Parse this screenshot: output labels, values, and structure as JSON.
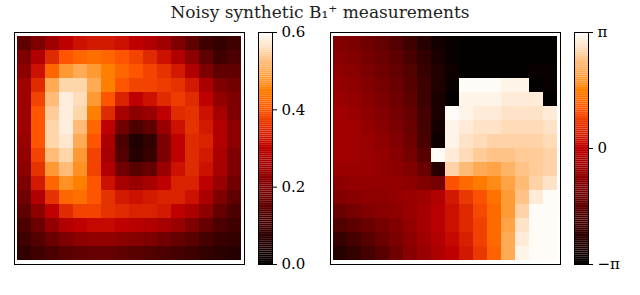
{
  "chart_data": [
    {
      "type": "heatmap",
      "title": "Noisy synthetic B₁⁺ measurements",
      "tick_labels": false,
      "cells": [
        [
          0.15,
          0.2,
          0.25,
          0.3,
          0.32,
          0.33,
          0.33,
          0.32,
          0.3,
          0.28,
          0.25,
          0.2,
          0.15,
          0.1,
          0.08,
          0.1
        ],
        [
          0.2,
          0.28,
          0.35,
          0.4,
          0.42,
          0.43,
          0.42,
          0.4,
          0.38,
          0.35,
          0.32,
          0.28,
          0.22,
          0.15,
          0.1,
          0.12
        ],
        [
          0.22,
          0.32,
          0.42,
          0.48,
          0.5,
          0.48,
          0.45,
          0.42,
          0.4,
          0.38,
          0.36,
          0.33,
          0.28,
          0.2,
          0.15,
          0.15
        ],
        [
          0.25,
          0.35,
          0.5,
          0.55,
          0.55,
          0.5,
          0.45,
          0.4,
          0.38,
          0.38,
          0.37,
          0.36,
          0.33,
          0.27,
          0.2,
          0.18
        ],
        [
          0.25,
          0.38,
          0.52,
          0.58,
          0.56,
          0.48,
          0.4,
          0.34,
          0.3,
          0.32,
          0.35,
          0.37,
          0.35,
          0.3,
          0.23,
          0.2
        ],
        [
          0.25,
          0.4,
          0.54,
          0.58,
          0.55,
          0.45,
          0.35,
          0.26,
          0.22,
          0.24,
          0.3,
          0.35,
          0.36,
          0.32,
          0.26,
          0.2
        ],
        [
          0.25,
          0.4,
          0.55,
          0.58,
          0.52,
          0.42,
          0.3,
          0.18,
          0.12,
          0.15,
          0.24,
          0.32,
          0.36,
          0.33,
          0.28,
          0.22
        ],
        [
          0.24,
          0.4,
          0.55,
          0.57,
          0.5,
          0.4,
          0.27,
          0.12,
          0.05,
          0.08,
          0.2,
          0.3,
          0.35,
          0.34,
          0.28,
          0.22
        ],
        [
          0.23,
          0.38,
          0.52,
          0.55,
          0.48,
          0.38,
          0.26,
          0.13,
          0.06,
          0.09,
          0.2,
          0.3,
          0.35,
          0.33,
          0.27,
          0.2
        ],
        [
          0.22,
          0.36,
          0.48,
          0.52,
          0.47,
          0.38,
          0.28,
          0.18,
          0.14,
          0.16,
          0.24,
          0.32,
          0.35,
          0.32,
          0.26,
          0.2
        ],
        [
          0.2,
          0.33,
          0.42,
          0.47,
          0.45,
          0.4,
          0.32,
          0.26,
          0.24,
          0.26,
          0.3,
          0.34,
          0.34,
          0.3,
          0.24,
          0.18
        ],
        [
          0.18,
          0.28,
          0.36,
          0.42,
          0.43,
          0.4,
          0.36,
          0.33,
          0.32,
          0.33,
          0.34,
          0.34,
          0.32,
          0.27,
          0.2,
          0.15
        ],
        [
          0.15,
          0.22,
          0.3,
          0.35,
          0.38,
          0.38,
          0.36,
          0.35,
          0.34,
          0.34,
          0.33,
          0.3,
          0.27,
          0.22,
          0.16,
          0.12
        ],
        [
          0.12,
          0.17,
          0.23,
          0.28,
          0.3,
          0.31,
          0.31,
          0.3,
          0.29,
          0.28,
          0.26,
          0.24,
          0.2,
          0.16,
          0.12,
          0.1
        ],
        [
          0.1,
          0.13,
          0.17,
          0.2,
          0.22,
          0.23,
          0.23,
          0.22,
          0.21,
          0.2,
          0.18,
          0.16,
          0.14,
          0.11,
          0.09,
          0.08
        ],
        [
          0.08,
          0.1,
          0.12,
          0.14,
          0.15,
          0.16,
          0.16,
          0.15,
          0.14,
          0.13,
          0.12,
          0.11,
          0.1,
          0.08,
          0.07,
          0.06
        ]
      ],
      "colorbar_range": [
        0,
        0.6
      ],
      "colorbar_ticks": [
        {
          "value": 0,
          "label": "0.0"
        },
        0.2,
        0.4,
        0.6
      ]
    },
    {
      "type": "heatmap",
      "tick_labels": false,
      "cells": [
        [
          -1.0,
          -1.1,
          -1.3,
          -1.5,
          -1.8,
          -2.1,
          -2.5,
          -2.8,
          -3.0,
          -3.1,
          -3.1,
          -3.1,
          -3.1,
          -3.1,
          -3.1,
          -3.1
        ],
        [
          -0.9,
          -1.0,
          -1.2,
          -1.4,
          -1.6,
          -1.9,
          -2.3,
          -2.7,
          -3.0,
          -3.1,
          -3.1,
          -3.1,
          -3.1,
          -3.1,
          -3.1,
          -3.1
        ],
        [
          -0.8,
          -0.9,
          -1.1,
          -1.3,
          -1.5,
          -1.8,
          -2.2,
          -2.6,
          -2.9,
          -3.1,
          -3.1,
          -3.1,
          -3.1,
          -3.1,
          -3.0,
          -3.0
        ],
        [
          -0.7,
          -0.8,
          -1.0,
          -1.2,
          -1.4,
          -1.7,
          -2.1,
          -2.6,
          -3.0,
          3.1,
          3.1,
          3.1,
          3.0,
          3.0,
          -3.1,
          -3.0
        ],
        [
          -0.6,
          -0.7,
          -0.9,
          -1.1,
          -1.3,
          -1.6,
          -2.1,
          -2.7,
          -3.1,
          3.0,
          3.0,
          3.0,
          2.9,
          2.9,
          2.9,
          -3.1
        ],
        [
          -0.5,
          -0.6,
          -0.8,
          -1.0,
          -1.2,
          -1.5,
          -2.0,
          -2.7,
          3.1,
          3.0,
          2.9,
          2.9,
          2.8,
          2.8,
          2.8,
          2.9
        ],
        [
          -0.5,
          -0.5,
          -0.7,
          -0.9,
          -1.1,
          -1.4,
          -2.0,
          -2.8,
          3.0,
          2.9,
          2.8,
          2.8,
          2.7,
          2.7,
          2.7,
          2.8
        ],
        [
          -0.5,
          -0.5,
          -0.6,
          -0.8,
          -1.0,
          -1.3,
          -1.9,
          -2.9,
          3.0,
          2.8,
          2.7,
          2.6,
          2.6,
          2.6,
          2.6,
          2.7
        ],
        [
          -0.5,
          -0.5,
          -0.6,
          -0.7,
          -0.9,
          -1.2,
          -1.7,
          3.1,
          2.9,
          2.7,
          2.5,
          2.4,
          2.4,
          2.5,
          2.5,
          2.6
        ],
        [
          -0.6,
          -0.6,
          -0.6,
          -0.7,
          -0.8,
          -1.0,
          -1.4,
          -2.5,
          2.6,
          2.3,
          2.1,
          2.0,
          2.2,
          2.4,
          2.5,
          2.6
        ],
        [
          -0.8,
          -0.7,
          -0.7,
          -0.7,
          -0.7,
          -0.8,
          -1.0,
          -1.2,
          1.0,
          1.3,
          1.5,
          1.7,
          2.0,
          2.3,
          2.6,
          2.8
        ],
        [
          -1.0,
          -0.9,
          -0.8,
          -0.8,
          -0.7,
          -0.6,
          -0.5,
          -0.2,
          0.3,
          0.7,
          1.0,
          1.4,
          1.9,
          2.4,
          2.9,
          3.1
        ],
        [
          -1.4,
          -1.2,
          -1.0,
          -0.9,
          -0.8,
          -0.6,
          -0.4,
          -0.1,
          0.2,
          0.5,
          0.9,
          1.3,
          1.9,
          2.6,
          3.1,
          3.1
        ],
        [
          -1.8,
          -1.6,
          -1.4,
          -1.2,
          -1.0,
          -0.7,
          -0.4,
          -0.1,
          0.2,
          0.5,
          0.8,
          1.3,
          2.0,
          2.8,
          3.1,
          3.1
        ],
        [
          -2.2,
          -2.0,
          -1.7,
          -1.4,
          -1.1,
          -0.8,
          -0.5,
          -0.2,
          0.1,
          0.4,
          0.8,
          1.3,
          2.1,
          2.9,
          3.1,
          3.1
        ],
        [
          -2.5,
          -2.3,
          -2.0,
          -1.7,
          -1.3,
          -0.9,
          -0.6,
          -0.3,
          0.0,
          0.3,
          0.7,
          1.2,
          2.1,
          3.0,
          3.1,
          3.1
        ]
      ],
      "colorbar_range": [
        -3.14159,
        3.14159
      ],
      "colorbar_ticks": [
        {
          "value": -3.14159,
          "label": "−π"
        },
        0,
        {
          "value": 3.14159,
          "label": "π"
        }
      ]
    }
  ]
}
